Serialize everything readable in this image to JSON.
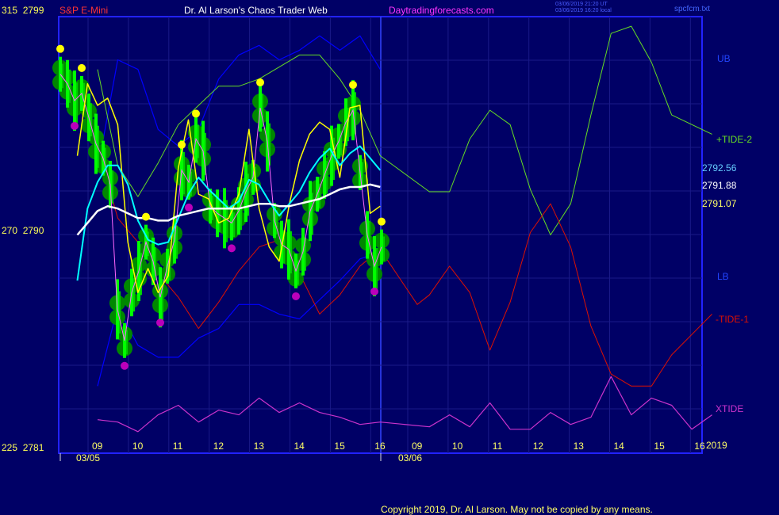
{
  "header": {
    "instrument": "S&P E-Mini",
    "title": "Dr. Al Larson's Chaos Trader Web",
    "site": "Daytradingforecasts.com",
    "timestamp_ut": "03/06/2019 21:20 UT",
    "timestamp_local": "03/06/2019 16:20 local",
    "file": "spcfcm.txt"
  },
  "footer": {
    "copyright": "Copyright 2019, Dr. Al Larson. May not be copied by any means."
  },
  "colors": {
    "background": "#000066",
    "frame": "#2222ff",
    "grid": "#1a1a88",
    "price_candles": "#00ff00",
    "halo": "#008800",
    "highs": "#ffff00",
    "lows": "#bb00bb",
    "yellow_line": "#ffff00",
    "cyan_line": "#00ffff",
    "white_line": "#ffffff",
    "band": "#0000ff",
    "tide2": "#66dd22",
    "tide1": "#dd1100",
    "xtide": "#cc33cc"
  },
  "chart_data": {
    "type": "line",
    "y_axis_left": [
      {
        "index": "315",
        "price": "2799"
      },
      {
        "index": "270",
        "price": "2790"
      },
      {
        "index": "225",
        "price": "2781"
      }
    ],
    "ylim": [
      2781,
      2799
    ],
    "x_ticks": [
      "09",
      "10",
      "11",
      "12",
      "13",
      "14",
      "15",
      "16",
      "09",
      "10",
      "11",
      "12",
      "13",
      "14",
      "15",
      "16"
    ],
    "date_labels": [
      "03/05",
      "03/06"
    ],
    "year_label": "2019",
    "right_labels": [
      {
        "text": "UB",
        "color": "#2244ff"
      },
      {
        "text": "+TIDE-2",
        "color": "#66dd22"
      },
      {
        "text": "2792.56",
        "color": "#66ccff"
      },
      {
        "text": "2791.88",
        "color": "#ffffff"
      },
      {
        "text": "2791.07",
        "color": "#ffff66"
      },
      {
        "text": "LB",
        "color": "#2244ff"
      },
      {
        "text": "-TIDE-1",
        "color": "#dd1100"
      },
      {
        "text": "XTIDE",
        "color": "#cc33cc"
      }
    ],
    "last_values": {
      "cyan": 2792.56,
      "white": 2791.88,
      "yellow": 2791.07
    },
    "price_close": [
      2796.6,
      2796.2,
      2795.5,
      2795.8,
      2794.8,
      2793.7,
      2793.1,
      2792.0,
      2786.8,
      2785.5,
      2787.5,
      2788.4,
      2789.6,
      2788.8,
      2787.3,
      2788.6,
      2789.7,
      2792.6,
      2792.1,
      2793.9,
      2793.4,
      2791.1,
      2790.8,
      2790.6,
      2790.4,
      2790.9,
      2791.7,
      2792.3,
      2795.2,
      2793.8,
      2790.5,
      2789.5,
      2789.3,
      2788.4,
      2789.2,
      2790.9,
      2791.6,
      2792.4,
      2793.2,
      2793.8,
      2794.6,
      2795.1,
      2792.5,
      2789.9,
      2788.6,
      2789.4
    ],
    "series": [
      {
        "name": "UB",
        "x": [
          9,
          9.5,
          10,
          10.5,
          11,
          11.5,
          12,
          12.5,
          13,
          13.5,
          14,
          14.5,
          15,
          15.5,
          16
        ],
        "y": [
          2792.6,
          2797.2,
          2796.8,
          2794.3,
          2793.6,
          2794.3,
          2796.4,
          2797.4,
          2797.8,
          2797.2,
          2797.6,
          2798.2,
          2797.6,
          2798.2,
          2796.8
        ]
      },
      {
        "name": "LB",
        "x": [
          9,
          9.5,
          10,
          10.5,
          11,
          11.5,
          12,
          12.5,
          13,
          13.5,
          14,
          14.5,
          15,
          15.5,
          16
        ],
        "y": [
          2783.6,
          2786.9,
          2785.3,
          2784.8,
          2784.8,
          2785.6,
          2786.0,
          2787.0,
          2787.0,
          2786.6,
          2786.4,
          2787.2,
          2788.0,
          2788.9,
          2789.2
        ]
      },
      {
        "name": "+TIDE-2",
        "x": [
          9,
          9.5,
          10,
          10.5,
          11,
          11.5,
          12,
          12.5,
          13,
          13.5,
          14,
          14.5,
          15,
          15.5,
          16,
          16.5,
          17,
          17.5,
          18,
          18.5,
          19,
          19.5,
          20,
          20.5,
          21,
          21.5,
          22,
          22.5,
          23.5
        ],
        "y": [
          2796.8,
          2792.8,
          2791.5,
          2792.9,
          2794.5,
          2795.3,
          2796.1,
          2796.1,
          2796.4,
          2796.9,
          2797.4,
          2797.4,
          2796.4,
          2795.1,
          2793.2,
          2791.7,
          2791.7,
          2793.9,
          2795.1,
          2794.5,
          2791.8,
          2789.9,
          2791.2,
          2794.9,
          2798.3,
          2798.6,
          2797.1,
          2794.9,
          2794.1
        ]
      },
      {
        "name": "-TIDE-1",
        "x": [
          9,
          9.5,
          10,
          10.5,
          11,
          11.5,
          12,
          12.5,
          13,
          13.5,
          14,
          14.5,
          15,
          15.5,
          16,
          16.2,
          16.5,
          17,
          17.5,
          18,
          18.5,
          19,
          19.5,
          20,
          20.5,
          21,
          21.5,
          22,
          22.5,
          23.5
        ],
        "y": [
          2793.6,
          2790.6,
          2789.6,
          2788.3,
          2787.3,
          2786.0,
          2787.1,
          2788.4,
          2789.4,
          2789.7,
          2788.3,
          2786.6,
          2787.4,
          2788.6,
          2789.3,
          2787.0,
          2787.4,
          2788.6,
          2787.5,
          2785.1,
          2787.1,
          2790.0,
          2791.2,
          2789.4,
          2786.1,
          2784.1,
          2783.6,
          2783.6,
          2784.9,
          2786.6
        ]
      },
      {
        "name": "XTIDE",
        "x": [
          9,
          9.5,
          10,
          10.5,
          11,
          11.5,
          12,
          12.5,
          13,
          13.5,
          14,
          14.5,
          15,
          15.5,
          16,
          16.5,
          17,
          17.5,
          18,
          18.5,
          19,
          19.5,
          20,
          20.5,
          21,
          21.5,
          22,
          22.5,
          23,
          23.5
        ],
        "y": [
          2782.2,
          2782.1,
          2781.7,
          2782.4,
          2782.8,
          2782.1,
          2782.6,
          2782.4,
          2783.1,
          2782.5,
          2782.9,
          2782.5,
          2782.3,
          2782.0,
          2782.1,
          2781.9,
          2782.4,
          2781.9,
          2782.9,
          2781.8,
          2781.8,
          2782.5,
          2782.0,
          2782.3,
          2784.0,
          2782.4,
          2783.1,
          2782.8,
          2781.8,
          2782.4
        ]
      },
      {
        "name": "yellow",
        "x": [
          8.5,
          8.75,
          9,
          9.25,
          9.5,
          9.75,
          10,
          10.25,
          10.5,
          10.75,
          11,
          11.25,
          11.5,
          11.75,
          12,
          12.25,
          12.5,
          12.75,
          13,
          13.25,
          13.5,
          13.75,
          14,
          14.25,
          14.5,
          14.75,
          15,
          15.25,
          15.5,
          15.75,
          16
        ],
        "y": [
          2793.2,
          2796.2,
          2795.3,
          2795.6,
          2794.5,
          2789.6,
          2787.5,
          2788.5,
          2787.5,
          2788.2,
          2792.7,
          2794.7,
          2791.6,
          2791.4,
          2790.4,
          2790.6,
          2791.6,
          2794.3,
          2791.0,
          2789.4,
          2788.8,
          2791.2,
          2793.0,
          2794.1,
          2794.6,
          2794.3,
          2792.3,
          2795.2,
          2795.3,
          2790.8,
          2791.1
        ]
      },
      {
        "name": "cyan",
        "x": [
          8.5,
          8.75,
          9,
          9.25,
          9.5,
          9.75,
          10,
          10.25,
          10.5,
          10.75,
          11,
          11.25,
          11.5,
          11.75,
          12,
          12.25,
          12.5,
          12.75,
          13,
          13.25,
          13.5,
          13.75,
          14,
          14.25,
          14.5,
          14.75,
          15,
          15.25,
          15.5,
          15.75,
          16
        ],
        "y": [
          2788.0,
          2791.0,
          2792.1,
          2792.8,
          2792.8,
          2792.0,
          2790.5,
          2789.7,
          2789.5,
          2789.6,
          2790.6,
          2791.6,
          2792.3,
          2791.8,
          2791.4,
          2791.0,
          2791.3,
          2792.2,
          2792.0,
          2791.3,
          2790.7,
          2791.2,
          2791.7,
          2792.5,
          2793.1,
          2793.5,
          2792.8,
          2793.3,
          2793.6,
          2793.1,
          2792.6
        ]
      },
      {
        "name": "white",
        "x": [
          8.5,
          8.75,
          9,
          9.25,
          9.5,
          9.75,
          10,
          10.25,
          10.5,
          10.75,
          11,
          11.25,
          11.5,
          11.75,
          12,
          12.25,
          12.5,
          12.75,
          13,
          13.25,
          13.5,
          13.75,
          14,
          14.25,
          14.5,
          14.75,
          15,
          15.25,
          15.5,
          15.75,
          16
        ],
        "y": [
          2789.9,
          2790.4,
          2790.9,
          2791.1,
          2791.0,
          2790.8,
          2790.6,
          2790.6,
          2790.5,
          2790.5,
          2790.7,
          2790.8,
          2790.9,
          2791.0,
          2791.0,
          2791.0,
          2791.0,
          2791.1,
          2791.2,
          2791.2,
          2791.1,
          2791.1,
          2791.2,
          2791.3,
          2791.4,
          2791.6,
          2791.8,
          2791.9,
          2791.9,
          2792.0,
          2791.9
        ]
      }
    ]
  }
}
